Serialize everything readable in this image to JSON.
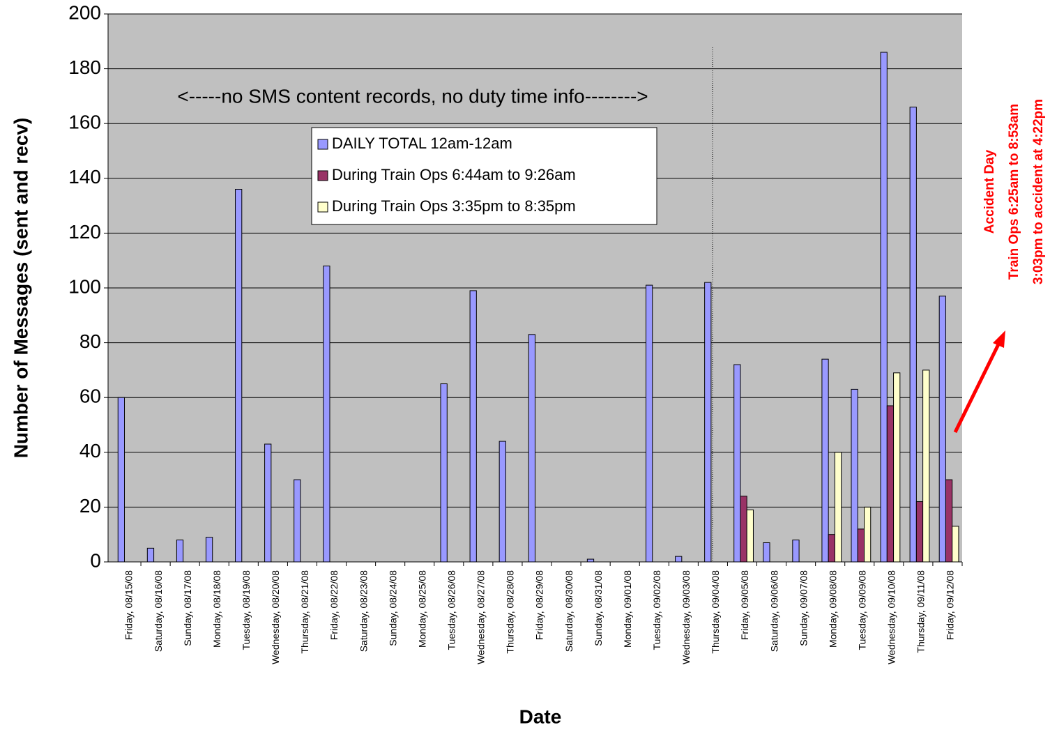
{
  "chart_data": {
    "type": "bar",
    "x_label": "Date",
    "y_label": "Number of Messages (sent and recv)",
    "categories": [
      "Friday, 08/15/08",
      "Saturday, 08/16/08",
      "Sunday, 08/17/08",
      "Monday, 08/18/08",
      "Tuesday, 08/19/08",
      "Wednesday, 08/20/08",
      "Thursday, 08/21/08",
      "Friday, 08/22/08",
      "Saturday, 08/23/08",
      "Sunday, 08/24/08",
      "Monday, 08/25/08",
      "Tuesday, 08/26/08",
      "Wednesday, 08/27/08",
      "Thursday, 08/28/08",
      "Friday, 08/29/08",
      "Saturday, 08/30/08",
      "Sunday, 08/31/08",
      "Monday, 09/01/08",
      "Tuesday, 09/02/08",
      "Wednesday, 09/03/08",
      "Thursday, 09/04/08",
      "Friday, 09/05/08",
      "Saturday, 09/06/08",
      "Sunday, 09/07/08",
      "Monday, 09/08/08",
      "Tuesday, 09/09/08",
      "Wednesday, 09/10/08",
      "Thursday, 09/11/08",
      "Friday, 09/12/08"
    ],
    "series": [
      {
        "name": "DAILY TOTAL 12am-12am",
        "color": "#9999ff",
        "values": [
          60,
          5,
          8,
          9,
          136,
          43,
          30,
          108,
          0,
          0,
          0,
          65,
          99,
          44,
          83,
          0,
          1,
          0,
          101,
          2,
          102,
          72,
          7,
          8,
          74,
          63,
          186,
          166,
          97
        ]
      },
      {
        "name": "During Train Ops 6:44am to 9:26am",
        "color": "#993366",
        "values": [
          null,
          null,
          null,
          null,
          null,
          null,
          null,
          null,
          null,
          null,
          null,
          null,
          null,
          null,
          null,
          null,
          null,
          null,
          null,
          null,
          null,
          24,
          0,
          0,
          10,
          12,
          57,
          22,
          30
        ]
      },
      {
        "name": "During Train Ops 3:35pm to 8:35pm",
        "color": "#ffffcc",
        "values": [
          null,
          null,
          null,
          null,
          null,
          null,
          null,
          null,
          null,
          null,
          null,
          null,
          null,
          null,
          null,
          null,
          null,
          null,
          null,
          null,
          null,
          19,
          0,
          0,
          40,
          20,
          69,
          70,
          13
        ]
      }
    ],
    "ylim": [
      0,
      200
    ],
    "yticks": [
      0,
      20,
      40,
      60,
      80,
      100,
      120,
      140,
      160,
      180,
      200
    ],
    "grid": true,
    "annotations": [
      "<-----no SMS content records, no duty time info-------->",
      "Accident Day",
      "Train Ops 6:25am to 8:53am",
      "3:03pm to accident at 4:22pm"
    ]
  }
}
